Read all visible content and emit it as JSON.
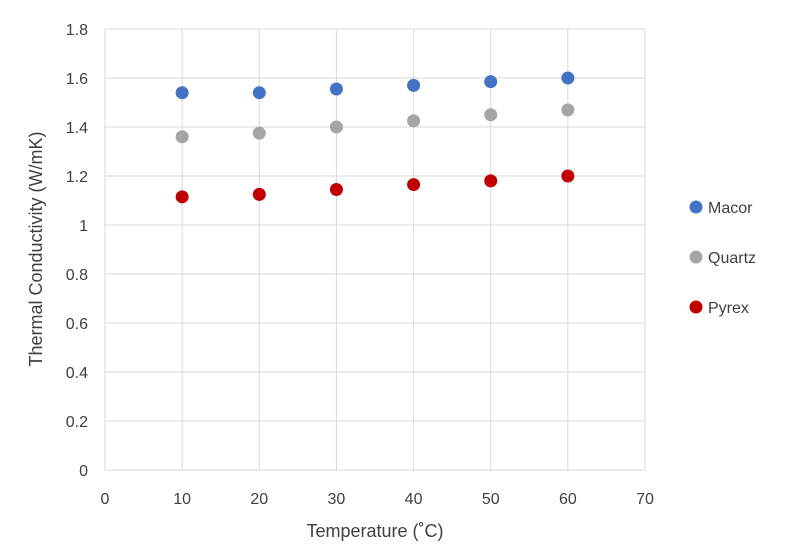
{
  "chart_data": {
    "type": "scatter",
    "title": "",
    "xlabel": "Temperature (˚C)",
    "ylabel": "Thermal Conductivity (W/mK)",
    "xlim": [
      0,
      70
    ],
    "ylim": [
      0,
      1.8
    ],
    "xticks": [
      "0",
      "10",
      "20",
      "30",
      "40",
      "50",
      "60",
      "70"
    ],
    "yticks": [
      "0",
      "0.2",
      "0.4",
      "0.6",
      "0.8",
      "1",
      "1.2",
      "1.4",
      "1.6",
      "1.8"
    ],
    "grid": true,
    "legend_position": "right",
    "x": [
      10,
      20,
      30,
      40,
      50,
      60
    ],
    "series": [
      {
        "name": "Macor",
        "color": "#4472C4",
        "values": [
          1.54,
          1.54,
          1.555,
          1.57,
          1.585,
          1.6
        ]
      },
      {
        "name": "Quartz",
        "color": "#A5A5A5",
        "values": [
          1.36,
          1.375,
          1.4,
          1.425,
          1.45,
          1.47
        ]
      },
      {
        "name": "Pyrex",
        "color": "#C00000",
        "values": [
          1.115,
          1.125,
          1.145,
          1.165,
          1.18,
          1.2
        ]
      }
    ]
  }
}
